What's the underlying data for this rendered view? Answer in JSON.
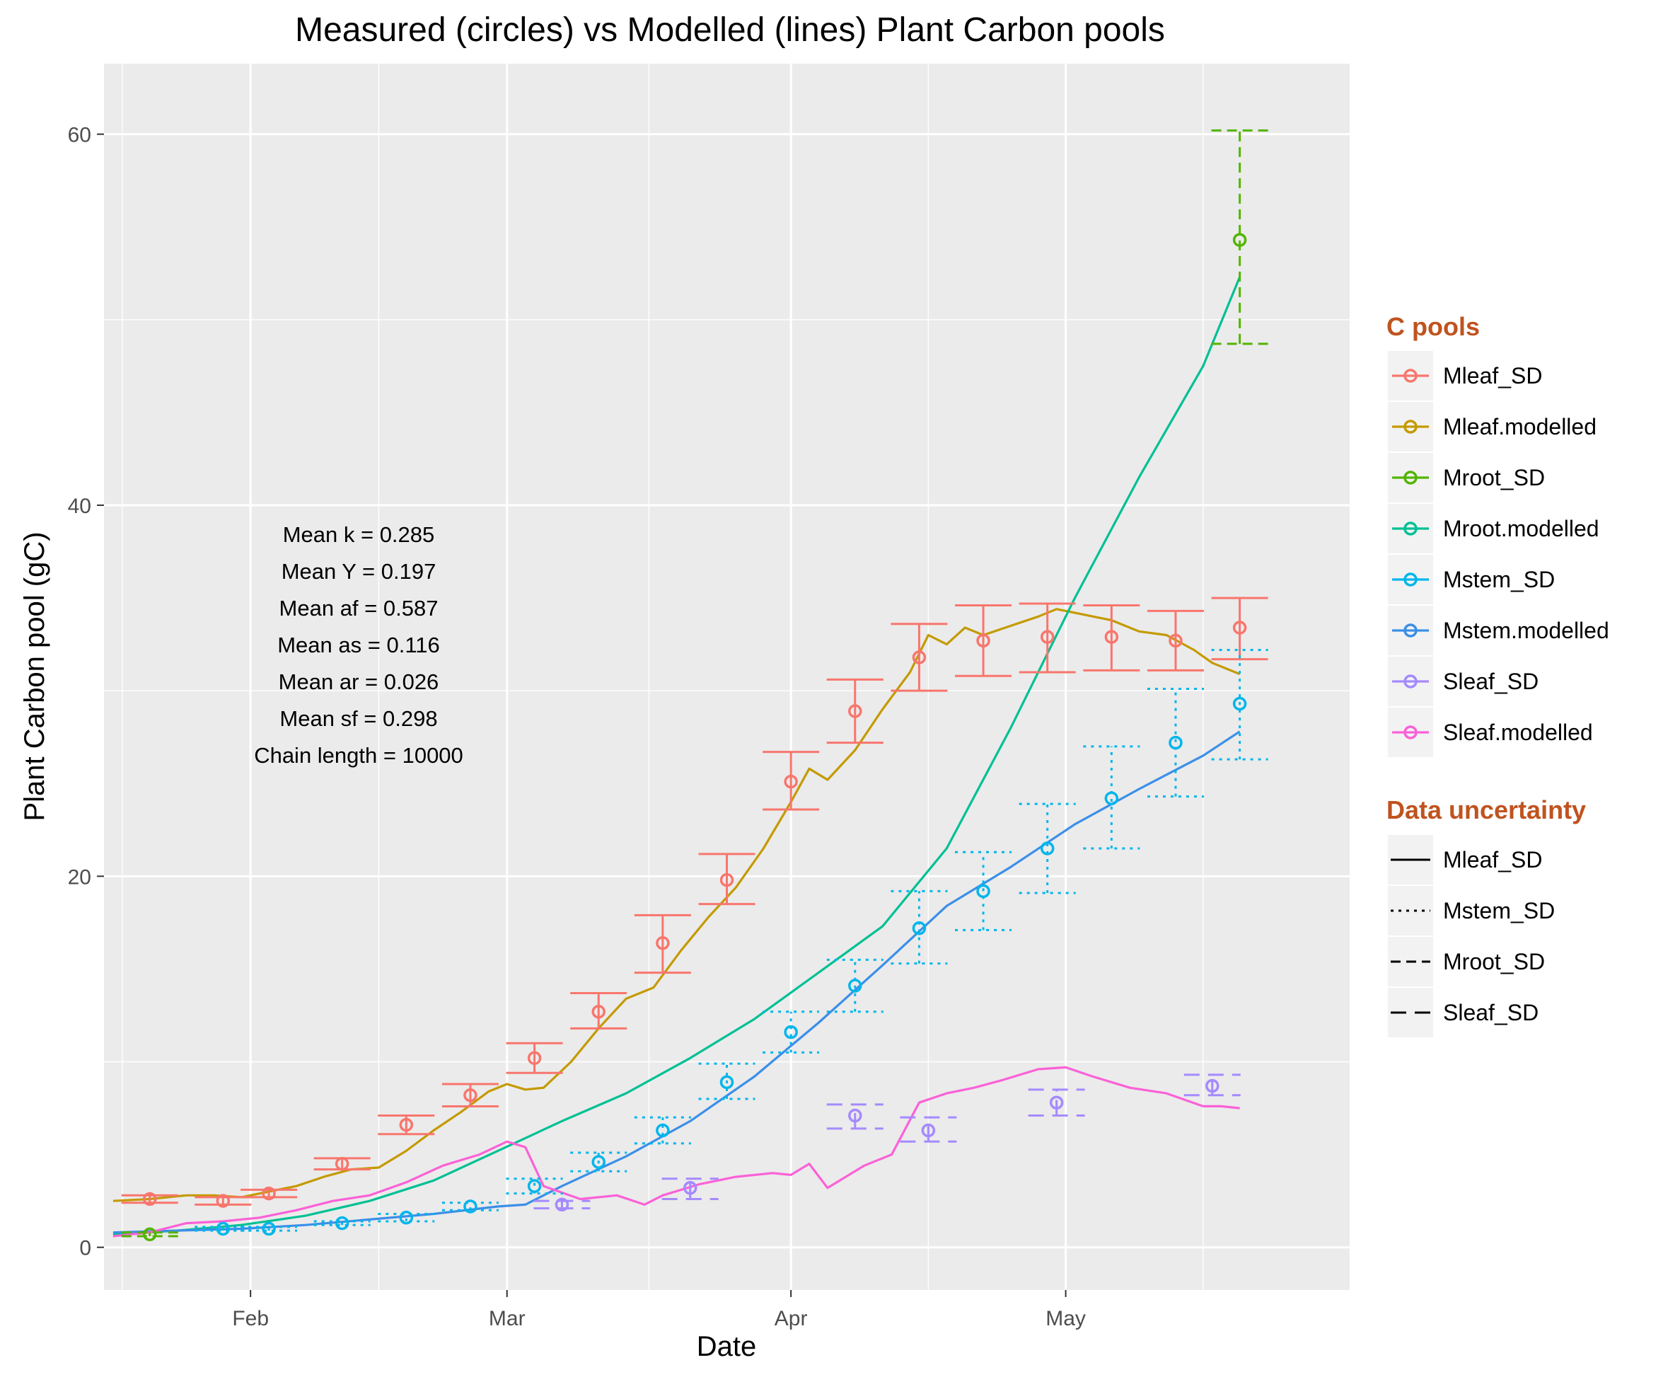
{
  "chart_data": {
    "type": "line",
    "title": "Measured (circles) vs Modelled (lines) Plant Carbon pools",
    "xlabel": "Date",
    "ylabel": "Plant Carbon pool (gC)",
    "x_unit": "date",
    "xlim": [
      "2019-01-16",
      "2019-06-01"
    ],
    "ylim": [
      -2.3,
      63.8
    ],
    "x_ticks": [
      {
        "date": "2019-02-01",
        "label": "Feb"
      },
      {
        "date": "2019-03-01",
        "label": "Mar"
      },
      {
        "date": "2019-04-01",
        "label": "Apr"
      },
      {
        "date": "2019-05-01",
        "label": "May"
      }
    ],
    "y_ticks": [
      0,
      20,
      40,
      60
    ],
    "grid": true,
    "legend": {
      "placement": "right",
      "colour_title": "C pools",
      "colour_items": [
        {
          "label": "Mleaf_SD",
          "color": "#F8766D"
        },
        {
          "label": "Mleaf.modelled",
          "color": "#C49A00"
        },
        {
          "label": "Mroot_SD",
          "color": "#53B400"
        },
        {
          "label": "Mroot.modelled",
          "color": "#00C094"
        },
        {
          "label": "Mstem_SD",
          "color": "#00B6EB"
        },
        {
          "label": "Mstem.modelled",
          "color": "#3B8FE8"
        },
        {
          "label": "Sleaf_SD",
          "color": "#A58AFF"
        },
        {
          "label": "Sleaf.modelled",
          "color": "#FB61D7"
        }
      ],
      "linetype_title": "Data uncertainty",
      "linetype_items": [
        {
          "label": "Mleaf_SD",
          "dash": "solid"
        },
        {
          "label": "Mstem_SD",
          "dash": "dotted"
        },
        {
          "label": "Mroot_SD",
          "dash": "dashed"
        },
        {
          "label": "Sleaf_SD",
          "dash": "longdash"
        }
      ]
    },
    "annotation_lines": [
      "Mean k =  0.285",
      "Mean Y =  0.197",
      "Mean af =  0.587",
      "Mean as =  0.116",
      "Mean ar =  0.026",
      "Mean sf =  0.298",
      "Chain length =  10000"
    ],
    "measured": [
      {
        "name": "Mleaf_SD",
        "color": "#F8766D",
        "dash": "solid",
        "points": [
          {
            "x": "2019-01-21",
            "y": 2.6,
            "lo": 2.4,
            "hi": 2.8
          },
          {
            "x": "2019-01-29",
            "y": 2.5,
            "lo": 2.3,
            "hi": 2.7
          },
          {
            "x": "2019-02-03",
            "y": 2.9,
            "lo": 2.7,
            "hi": 3.1
          },
          {
            "x": "2019-02-11",
            "y": 4.5,
            "lo": 4.2,
            "hi": 4.8
          },
          {
            "x": "2019-02-18",
            "y": 6.6,
            "lo": 6.1,
            "hi": 7.1
          },
          {
            "x": "2019-02-25",
            "y": 8.2,
            "lo": 7.6,
            "hi": 8.8
          },
          {
            "x": "2019-03-04",
            "y": 10.2,
            "lo": 9.4,
            "hi": 11.0
          },
          {
            "x": "2019-03-11",
            "y": 12.7,
            "lo": 11.8,
            "hi": 13.7
          },
          {
            "x": "2019-03-18",
            "y": 16.4,
            "lo": 14.8,
            "hi": 17.9
          },
          {
            "x": "2019-03-25",
            "y": 19.8,
            "lo": 18.5,
            "hi": 21.2
          },
          {
            "x": "2019-04-01",
            "y": 25.1,
            "lo": 23.6,
            "hi": 26.7
          },
          {
            "x": "2019-04-08",
            "y": 28.9,
            "lo": 27.2,
            "hi": 30.6
          },
          {
            "x": "2019-04-15",
            "y": 31.8,
            "lo": 30.0,
            "hi": 33.6
          },
          {
            "x": "2019-04-22",
            "y": 32.7,
            "lo": 30.8,
            "hi": 34.6
          },
          {
            "x": "2019-04-29",
            "y": 32.9,
            "lo": 31.0,
            "hi": 34.7
          },
          {
            "x": "2019-05-06",
            "y": 32.9,
            "lo": 31.1,
            "hi": 34.6
          },
          {
            "x": "2019-05-13",
            "y": 32.7,
            "lo": 31.1,
            "hi": 34.3
          },
          {
            "x": "2019-05-20",
            "y": 33.4,
            "lo": 31.7,
            "hi": 35.0
          }
        ]
      },
      {
        "name": "Mroot_SD",
        "color": "#53B400",
        "dash": "dashed",
        "points": [
          {
            "x": "2019-01-21",
            "y": 0.7,
            "lo": 0.6,
            "hi": 0.8
          },
          {
            "x": "2019-05-20",
            "y": 54.3,
            "lo": 48.7,
            "hi": 60.2
          }
        ]
      },
      {
        "name": "Mstem_SD",
        "color": "#00B6EB",
        "dash": "dotted",
        "points": [
          {
            "x": "2019-01-29",
            "y": 1.0,
            "lo": 0.9,
            "hi": 1.1
          },
          {
            "x": "2019-02-03",
            "y": 1.0,
            "lo": 0.9,
            "hi": 1.1
          },
          {
            "x": "2019-02-11",
            "y": 1.3,
            "lo": 1.2,
            "hi": 1.4
          },
          {
            "x": "2019-02-18",
            "y": 1.6,
            "lo": 1.4,
            "hi": 1.8
          },
          {
            "x": "2019-02-25",
            "y": 2.2,
            "lo": 2.0,
            "hi": 2.4
          },
          {
            "x": "2019-03-04",
            "y": 3.3,
            "lo": 2.9,
            "hi": 3.7
          },
          {
            "x": "2019-03-11",
            "y": 4.6,
            "lo": 4.1,
            "hi": 5.1
          },
          {
            "x": "2019-03-18",
            "y": 6.3,
            "lo": 5.6,
            "hi": 7.0
          },
          {
            "x": "2019-03-25",
            "y": 8.9,
            "lo": 8.0,
            "hi": 9.9
          },
          {
            "x": "2019-04-01",
            "y": 11.6,
            "lo": 10.5,
            "hi": 12.7
          },
          {
            "x": "2019-04-08",
            "y": 14.1,
            "lo": 12.7,
            "hi": 15.5
          },
          {
            "x": "2019-04-15",
            "y": 17.2,
            "lo": 15.3,
            "hi": 19.2
          },
          {
            "x": "2019-04-22",
            "y": 19.2,
            "lo": 17.1,
            "hi": 21.3
          },
          {
            "x": "2019-04-29",
            "y": 21.5,
            "lo": 19.1,
            "hi": 23.9
          },
          {
            "x": "2019-05-06",
            "y": 24.2,
            "lo": 21.5,
            "hi": 27.0
          },
          {
            "x": "2019-05-13",
            "y": 27.2,
            "lo": 24.3,
            "hi": 30.1
          },
          {
            "x": "2019-05-20",
            "y": 29.3,
            "lo": 26.3,
            "hi": 32.2
          }
        ]
      },
      {
        "name": "Sleaf_SD",
        "color": "#A58AFF",
        "dash": "longdash",
        "points": [
          {
            "x": "2019-03-07",
            "y": 2.3,
            "lo": 2.1,
            "hi": 2.5
          },
          {
            "x": "2019-03-21",
            "y": 3.2,
            "lo": 2.6,
            "hi": 3.7
          },
          {
            "x": "2019-04-08",
            "y": 7.1,
            "lo": 6.4,
            "hi": 7.7
          },
          {
            "x": "2019-04-16",
            "y": 6.3,
            "lo": 5.7,
            "hi": 7.0
          },
          {
            "x": "2019-04-30",
            "y": 7.8,
            "lo": 7.1,
            "hi": 8.5
          },
          {
            "x": "2019-05-17",
            "y": 8.7,
            "lo": 8.2,
            "hi": 9.3
          }
        ]
      }
    ],
    "modelled": [
      {
        "name": "Mleaf.modelled",
        "color": "#C49A00",
        "points": [
          [
            "2019-01-17",
            2.5
          ],
          [
            "2019-01-21",
            2.6
          ],
          [
            "2019-01-25",
            2.8
          ],
          [
            "2019-01-28",
            2.8
          ],
          [
            "2019-01-31",
            2.7
          ],
          [
            "2019-02-03",
            3.0
          ],
          [
            "2019-02-06",
            3.3
          ],
          [
            "2019-02-09",
            3.8
          ],
          [
            "2019-02-12",
            4.2
          ],
          [
            "2019-02-15",
            4.3
          ],
          [
            "2019-02-18",
            5.2
          ],
          [
            "2019-02-21",
            6.3
          ],
          [
            "2019-02-24",
            7.3
          ],
          [
            "2019-02-27",
            8.4
          ],
          [
            "2019-03-01",
            8.8
          ],
          [
            "2019-03-03",
            8.5
          ],
          [
            "2019-03-05",
            8.6
          ],
          [
            "2019-03-08",
            10.0
          ],
          [
            "2019-03-11",
            11.8
          ],
          [
            "2019-03-14",
            13.4
          ],
          [
            "2019-03-17",
            14.0
          ],
          [
            "2019-03-20",
            16.0
          ],
          [
            "2019-03-23",
            17.8
          ],
          [
            "2019-03-26",
            19.4
          ],
          [
            "2019-03-29",
            21.5
          ],
          [
            "2019-04-01",
            24.0
          ],
          [
            "2019-04-03",
            25.8
          ],
          [
            "2019-04-05",
            25.2
          ],
          [
            "2019-04-08",
            26.8
          ],
          [
            "2019-04-11",
            29.0
          ],
          [
            "2019-04-14",
            31.0
          ],
          [
            "2019-04-16",
            33.0
          ],
          [
            "2019-04-18",
            32.5
          ],
          [
            "2019-04-20",
            33.4
          ],
          [
            "2019-04-22",
            33.0
          ],
          [
            "2019-04-25",
            33.5
          ],
          [
            "2019-04-28",
            34.0
          ],
          [
            "2019-04-30",
            34.4
          ],
          [
            "2019-05-02",
            34.2
          ],
          [
            "2019-05-04",
            34.0
          ],
          [
            "2019-05-06",
            33.8
          ],
          [
            "2019-05-09",
            33.2
          ],
          [
            "2019-05-12",
            33.0
          ],
          [
            "2019-05-15",
            32.2
          ],
          [
            "2019-05-17",
            31.5
          ],
          [
            "2019-05-20",
            30.9
          ]
        ]
      },
      {
        "name": "Mroot.modelled",
        "color": "#00C094",
        "points": [
          [
            "2019-01-17",
            0.7
          ],
          [
            "2019-01-24",
            0.9
          ],
          [
            "2019-01-31",
            1.2
          ],
          [
            "2019-02-07",
            1.7
          ],
          [
            "2019-02-14",
            2.5
          ],
          [
            "2019-02-21",
            3.6
          ],
          [
            "2019-02-28",
            5.2
          ],
          [
            "2019-03-07",
            6.8
          ],
          [
            "2019-03-14",
            8.3
          ],
          [
            "2019-03-21",
            10.2
          ],
          [
            "2019-03-28",
            12.3
          ],
          [
            "2019-04-04",
            14.8
          ],
          [
            "2019-04-11",
            17.3
          ],
          [
            "2019-04-18",
            21.5
          ],
          [
            "2019-04-25",
            28.0
          ],
          [
            "2019-05-02",
            35.0
          ],
          [
            "2019-05-09",
            41.5
          ],
          [
            "2019-05-16",
            47.5
          ],
          [
            "2019-05-20",
            52.3
          ]
        ]
      },
      {
        "name": "Mstem.modelled",
        "color": "#3B8FE8",
        "points": [
          [
            "2019-01-17",
            0.8
          ],
          [
            "2019-01-24",
            0.9
          ],
          [
            "2019-01-31",
            1.0
          ],
          [
            "2019-02-07",
            1.2
          ],
          [
            "2019-02-14",
            1.5
          ],
          [
            "2019-02-21",
            1.8
          ],
          [
            "2019-02-28",
            2.2
          ],
          [
            "2019-03-03",
            2.3
          ],
          [
            "2019-03-07",
            3.3
          ],
          [
            "2019-03-14",
            4.9
          ],
          [
            "2019-03-21",
            6.8
          ],
          [
            "2019-03-28",
            9.2
          ],
          [
            "2019-04-04",
            12.1
          ],
          [
            "2019-04-11",
            15.2
          ],
          [
            "2019-04-18",
            18.4
          ],
          [
            "2019-04-25",
            20.5
          ],
          [
            "2019-05-02",
            22.8
          ],
          [
            "2019-05-09",
            24.7
          ],
          [
            "2019-05-16",
            26.5
          ],
          [
            "2019-05-20",
            27.8
          ]
        ]
      },
      {
        "name": "Sleaf.modelled",
        "color": "#FB61D7",
        "points": [
          [
            "2019-01-17",
            0.6
          ],
          [
            "2019-01-21",
            0.8
          ],
          [
            "2019-01-25",
            1.3
          ],
          [
            "2019-01-29",
            1.4
          ],
          [
            "2019-02-02",
            1.6
          ],
          [
            "2019-02-06",
            2.0
          ],
          [
            "2019-02-10",
            2.5
          ],
          [
            "2019-02-14",
            2.8
          ],
          [
            "2019-02-18",
            3.5
          ],
          [
            "2019-02-22",
            4.4
          ],
          [
            "2019-02-26",
            5.0
          ],
          [
            "2019-03-01",
            5.7
          ],
          [
            "2019-03-03",
            5.4
          ],
          [
            "2019-03-05",
            3.3
          ],
          [
            "2019-03-09",
            2.6
          ],
          [
            "2019-03-13",
            2.8
          ],
          [
            "2019-03-16",
            2.3
          ],
          [
            "2019-03-18",
            2.8
          ],
          [
            "2019-03-22",
            3.4
          ],
          [
            "2019-03-26",
            3.8
          ],
          [
            "2019-03-30",
            4.0
          ],
          [
            "2019-04-01",
            3.9
          ],
          [
            "2019-04-03",
            4.5
          ],
          [
            "2019-04-05",
            3.2
          ],
          [
            "2019-04-09",
            4.4
          ],
          [
            "2019-04-12",
            5.0
          ],
          [
            "2019-04-15",
            7.8
          ],
          [
            "2019-04-18",
            8.3
          ],
          [
            "2019-04-21",
            8.6
          ],
          [
            "2019-04-24",
            9.0
          ],
          [
            "2019-04-28",
            9.6
          ],
          [
            "2019-05-01",
            9.7
          ],
          [
            "2019-05-04",
            9.2
          ],
          [
            "2019-05-08",
            8.6
          ],
          [
            "2019-05-12",
            8.3
          ],
          [
            "2019-05-16",
            7.6
          ],
          [
            "2019-05-18",
            7.6
          ],
          [
            "2019-05-20",
            7.5
          ]
        ]
      }
    ]
  }
}
